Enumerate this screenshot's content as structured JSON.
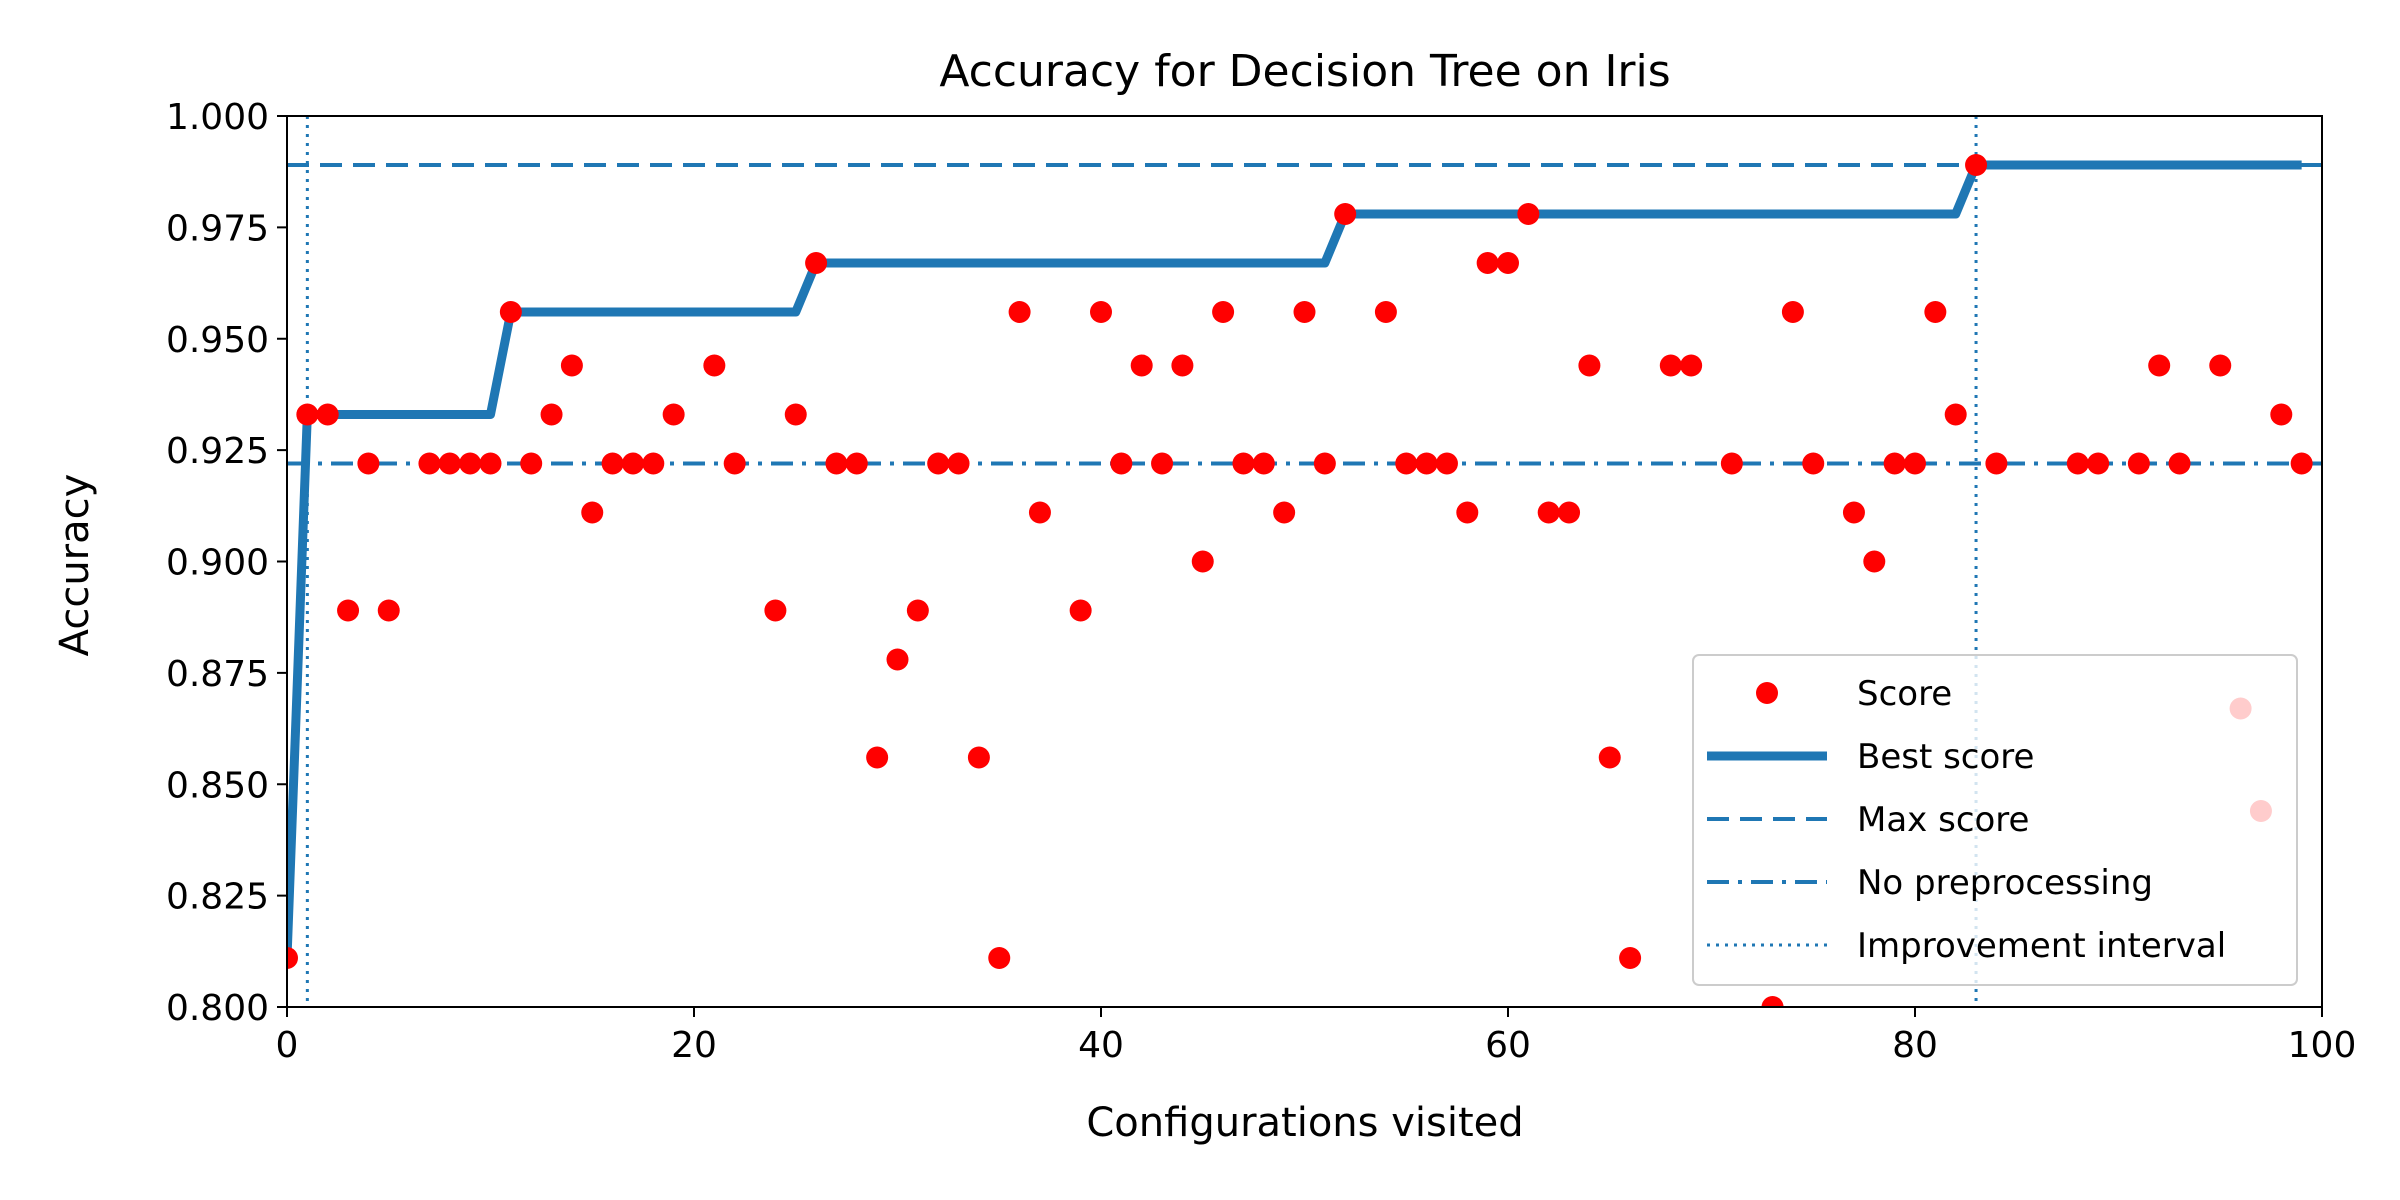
{
  "chart_data": {
    "type": "scatter",
    "title": "Accuracy for Decision Tree on Iris",
    "xlabel": "Configurations visited",
    "ylabel": "Accuracy",
    "xlim": [
      0,
      100
    ],
    "ylim": [
      0.8,
      1.0
    ],
    "xticks": [
      "0",
      "20",
      "40",
      "60",
      "80",
      "100"
    ],
    "yticks": [
      "0.800",
      "0.825",
      "0.850",
      "0.875",
      "0.900",
      "0.925",
      "0.950",
      "0.975",
      "1.000"
    ],
    "grid": false,
    "legend_position": "lower-right",
    "colors": {
      "score": "#ff0000",
      "best": "#1f77b4",
      "lines": "#1f77b4"
    },
    "series": [
      {
        "name": "Score",
        "style": "markers",
        "points": [
          [
            0,
            0.811
          ],
          [
            1,
            0.933
          ],
          [
            2,
            0.933
          ],
          [
            3,
            0.889
          ],
          [
            4,
            0.922
          ],
          [
            5,
            0.889
          ],
          [
            7,
            0.922
          ],
          [
            8,
            0.922
          ],
          [
            9,
            0.922
          ],
          [
            10,
            0.922
          ],
          [
            11,
            0.956
          ],
          [
            12,
            0.922
          ],
          [
            13,
            0.933
          ],
          [
            14,
            0.944
          ],
          [
            15,
            0.911
          ],
          [
            16,
            0.922
          ],
          [
            17,
            0.922
          ],
          [
            18,
            0.922
          ],
          [
            19,
            0.933
          ],
          [
            21,
            0.944
          ],
          [
            22,
            0.922
          ],
          [
            24,
            0.889
          ],
          [
            25,
            0.933
          ],
          [
            26,
            0.967
          ],
          [
            27,
            0.922
          ],
          [
            28,
            0.922
          ],
          [
            29,
            0.856
          ],
          [
            30,
            0.878
          ],
          [
            31,
            0.889
          ],
          [
            32,
            0.922
          ],
          [
            33,
            0.922
          ],
          [
            34,
            0.856
          ],
          [
            35,
            0.811
          ],
          [
            36,
            0.956
          ],
          [
            37,
            0.911
          ],
          [
            39,
            0.889
          ],
          [
            40,
            0.956
          ],
          [
            41,
            0.922
          ],
          [
            42,
            0.944
          ],
          [
            43,
            0.922
          ],
          [
            44,
            0.944
          ],
          [
            45,
            0.9
          ],
          [
            46,
            0.956
          ],
          [
            47,
            0.922
          ],
          [
            48,
            0.922
          ],
          [
            49,
            0.911
          ],
          [
            50,
            0.956
          ],
          [
            51,
            0.922
          ],
          [
            52,
            0.978
          ],
          [
            54,
            0.956
          ],
          [
            55,
            0.922
          ],
          [
            56,
            0.922
          ],
          [
            57,
            0.922
          ],
          [
            58,
            0.911
          ],
          [
            59,
            0.967
          ],
          [
            60,
            0.967
          ],
          [
            61,
            0.978
          ],
          [
            62,
            0.911
          ],
          [
            63,
            0.911
          ],
          [
            64,
            0.944
          ],
          [
            65,
            0.856
          ],
          [
            66,
            0.811
          ],
          [
            68,
            0.944
          ],
          [
            69,
            0.944
          ],
          [
            71,
            0.922
          ],
          [
            73,
            0.8
          ],
          [
            74,
            0.956
          ],
          [
            75,
            0.922
          ],
          [
            77,
            0.911
          ],
          [
            78,
            0.9
          ],
          [
            79,
            0.922
          ],
          [
            80,
            0.922
          ],
          [
            81,
            0.956
          ],
          [
            82,
            0.933
          ],
          [
            83,
            0.989
          ],
          [
            84,
            0.922
          ],
          [
            88,
            0.922
          ],
          [
            89,
            0.922
          ],
          [
            91,
            0.922
          ],
          [
            92,
            0.944
          ],
          [
            93,
            0.922
          ],
          [
            95,
            0.944
          ],
          [
            96,
            0.867
          ],
          [
            97,
            0.844
          ],
          [
            98,
            0.933
          ],
          [
            99,
            0.922
          ]
        ]
      },
      {
        "name": "Best score",
        "style": "step",
        "points": [
          [
            0,
            0.811
          ],
          [
            1,
            0.933
          ],
          [
            10,
            0.933
          ],
          [
            11,
            0.956
          ],
          [
            25,
            0.956
          ],
          [
            26,
            0.967
          ],
          [
            51,
            0.967
          ],
          [
            52,
            0.978
          ],
          [
            82,
            0.978
          ],
          [
            83,
            0.989
          ],
          [
            99,
            0.989
          ]
        ]
      },
      {
        "name": "Max score",
        "style": "dashed-hline",
        "y": 0.989
      },
      {
        "name": "No preprocessing",
        "style": "dashdot-hline",
        "y": 0.922
      },
      {
        "name": "Improvement interval",
        "style": "dotted-vline",
        "x": [
          1,
          83
        ]
      }
    ]
  }
}
